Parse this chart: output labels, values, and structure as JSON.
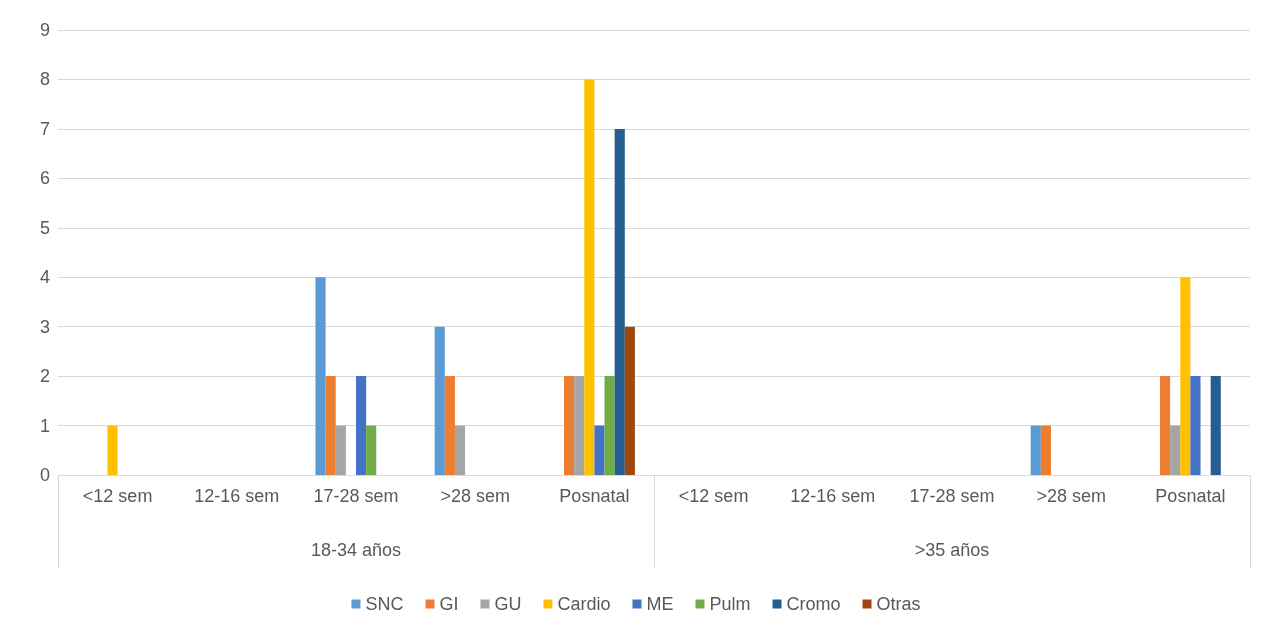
{
  "chart_data": {
    "type": "bar",
    "categories": [
      "<12 sem",
      "12-16 sem",
      "17-28 sem",
      ">28 sem",
      "Posnatal",
      "<12 sem",
      "12-16 sem",
      "17-28 sem",
      ">28 sem",
      "Posnatal"
    ],
    "annotations": [
      "18-34 años",
      ">35 años"
    ],
    "series": [
      {
        "name": "SNC",
        "color": "#5b9bd5",
        "values": [
          0,
          0,
          4,
          3,
          0,
          0,
          0,
          0,
          1,
          0
        ]
      },
      {
        "name": "GI",
        "color": "#ed7d31",
        "values": [
          0,
          0,
          2,
          2,
          2,
          0,
          0,
          0,
          1,
          2
        ]
      },
      {
        "name": "GU",
        "color": "#a5a5a5",
        "values": [
          0,
          0,
          1,
          1,
          2,
          0,
          0,
          0,
          0,
          1
        ]
      },
      {
        "name": "Cardio",
        "color": "#ffc000",
        "values": [
          1,
          0,
          0,
          0,
          8,
          0,
          0,
          0,
          0,
          4
        ]
      },
      {
        "name": "ME",
        "color": "#4472c4",
        "values": [
          0,
          0,
          2,
          0,
          1,
          0,
          0,
          0,
          0,
          2
        ]
      },
      {
        "name": "Pulm",
        "color": "#70ad47",
        "values": [
          0,
          0,
          1,
          0,
          2,
          0,
          0,
          0,
          0,
          0
        ]
      },
      {
        "name": "Cromo",
        "color": "#255e91",
        "values": [
          0,
          0,
          0,
          0,
          7,
          0,
          0,
          0,
          0,
          2
        ]
      },
      {
        "name": "Otras",
        "color": "#9e480e",
        "values": [
          0,
          0,
          0,
          0,
          3,
          0,
          0,
          0,
          0,
          0
        ]
      }
    ],
    "ylim": [
      0,
      9
    ],
    "yticks": [
      0,
      1,
      2,
      3,
      4,
      5,
      6,
      7,
      8,
      9
    ],
    "grid": "y",
    "legend": "bottom"
  }
}
